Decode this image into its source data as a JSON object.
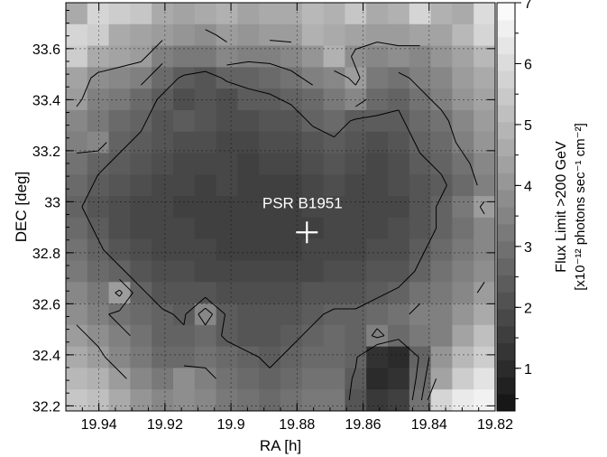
{
  "chart_data": {
    "type": "heatmap",
    "title": "",
    "xlabel": "RA [h]",
    "ylabel": "DEC [deg]",
    "colorbar_label": "Flux Limit >200 GeV",
    "colorbar_unit": "[x10⁻¹² photons sec⁻¹ cm⁻²]",
    "xlim": [
      19.95,
      19.82
    ],
    "ylim": [
      32.18,
      33.78
    ],
    "zlim": [
      0.3,
      7
    ],
    "x_ticks": [
      19.94,
      19.92,
      19.9,
      19.88,
      19.86,
      19.84,
      19.82
    ],
    "x_tick_labels": [
      "19.94",
      "19.92",
      "19.9",
      "19.88",
      "19.86",
      "19.84",
      "19.82"
    ],
    "y_ticks": [
      32.2,
      32.4,
      32.6,
      32.8,
      33.0,
      33.2,
      33.4,
      33.6
    ],
    "y_tick_labels": [
      "32.2",
      "32.4",
      "32.6",
      "32.8",
      "33",
      "33.2",
      "33.4",
      "33.6"
    ],
    "z_ticks": [
      1,
      2,
      3,
      4,
      5,
      6,
      7
    ],
    "z_tick_labels": [
      "1",
      "2",
      "3",
      "4",
      "5",
      "6",
      "7"
    ],
    "grid": true,
    "annotation": {
      "label": "PSR B1951",
      "ra": 19.877,
      "dec": 32.88
    },
    "grid_note": "rows listed from top (DEC 33.78) to bottom (DEC 32.18); columns from RA 19.95 to 19.82",
    "cell_values": [
      [
        4.6,
        5.8,
        5.6,
        5.4,
        4.6,
        4.4,
        4.6,
        4.8,
        4.4,
        4.6,
        4.6,
        5.0,
        4.8,
        5.4,
        4.6,
        4.8,
        5.8,
        4.8,
        4.6,
        6.0
      ],
      [
        5.8,
        5.6,
        4.6,
        4.4,
        4.2,
        4.0,
        3.8,
        4.2,
        4.0,
        4.2,
        4.2,
        4.8,
        4.6,
        4.4,
        4.2,
        4.2,
        4.4,
        4.4,
        5.0,
        5.8
      ],
      [
        5.6,
        4.6,
        4.4,
        4.2,
        3.4,
        3.2,
        3.2,
        3.6,
        3.4,
        3.4,
        3.6,
        4.0,
        4.8,
        3.8,
        3.6,
        3.8,
        3.6,
        4.0,
        4.4,
        5.0
      ],
      [
        4.4,
        3.8,
        3.6,
        3.4,
        2.8,
        2.4,
        2.2,
        2.6,
        2.6,
        2.8,
        3.0,
        3.4,
        3.6,
        4.2,
        3.2,
        3.0,
        3.4,
        3.6,
        4.2,
        4.6
      ],
      [
        4.2,
        3.4,
        3.2,
        2.8,
        2.4,
        2.0,
        2.2,
        2.0,
        2.4,
        2.4,
        2.6,
        2.8,
        3.2,
        3.6,
        2.8,
        2.6,
        3.0,
        3.4,
        4.0,
        4.4
      ],
      [
        3.6,
        3.2,
        2.8,
        2.6,
        2.2,
        2.4,
        2.2,
        2.0,
        2.0,
        2.2,
        2.2,
        2.6,
        2.8,
        2.4,
        2.4,
        2.4,
        2.8,
        3.0,
        3.6,
        4.2
      ],
      [
        3.4,
        3.6,
        2.6,
        2.4,
        2.2,
        2.0,
        2.0,
        1.8,
        1.8,
        2.0,
        2.0,
        2.2,
        2.4,
        2.2,
        2.0,
        2.2,
        2.6,
        2.8,
        3.4,
        4.0
      ],
      [
        3.0,
        2.6,
        2.4,
        2.2,
        2.0,
        1.8,
        1.8,
        1.8,
        1.6,
        1.8,
        1.8,
        2.0,
        2.2,
        2.0,
        1.8,
        2.0,
        2.4,
        2.6,
        3.0,
        3.6
      ],
      [
        2.8,
        2.4,
        2.2,
        2.0,
        1.8,
        1.8,
        1.6,
        1.8,
        1.6,
        1.6,
        1.6,
        1.8,
        2.0,
        1.8,
        1.8,
        2.0,
        2.2,
        2.4,
        2.8,
        3.4
      ],
      [
        2.6,
        2.2,
        2.0,
        1.8,
        1.8,
        1.6,
        1.6,
        1.6,
        1.6,
        1.6,
        1.6,
        1.8,
        1.8,
        1.8,
        1.8,
        1.8,
        2.2,
        2.6,
        3.2,
        4.2
      ],
      [
        2.8,
        2.4,
        2.0,
        1.8,
        1.8,
        1.8,
        1.6,
        1.6,
        1.6,
        1.6,
        1.6,
        1.6,
        1.8,
        1.8,
        1.8,
        2.0,
        2.2,
        2.6,
        3.0,
        3.6
      ],
      [
        3.0,
        2.6,
        2.2,
        2.0,
        1.8,
        1.8,
        1.8,
        1.6,
        1.6,
        1.6,
        1.6,
        1.8,
        1.8,
        1.8,
        2.0,
        2.0,
        2.4,
        2.8,
        3.2,
        3.6
      ],
      [
        3.2,
        2.8,
        2.6,
        2.2,
        2.0,
        2.0,
        1.8,
        1.8,
        1.8,
        1.8,
        1.8,
        1.8,
        2.0,
        2.0,
        2.2,
        2.2,
        2.6,
        3.0,
        3.4,
        3.8
      ],
      [
        3.6,
        3.2,
        4.2,
        2.6,
        2.2,
        2.2,
        2.2,
        2.0,
        2.0,
        2.0,
        2.0,
        2.2,
        2.2,
        2.2,
        2.4,
        2.6,
        3.0,
        3.2,
        3.6,
        4.2
      ],
      [
        3.8,
        3.4,
        3.0,
        2.8,
        2.6,
        2.4,
        3.6,
        2.4,
        2.2,
        2.2,
        2.2,
        2.4,
        2.6,
        2.6,
        2.8,
        3.0,
        3.4,
        3.4,
        4.0,
        4.6
      ],
      [
        4.2,
        3.8,
        3.4,
        3.0,
        2.6,
        2.6,
        2.8,
        2.4,
        2.2,
        2.2,
        2.4,
        2.6,
        2.8,
        2.6,
        3.4,
        2.8,
        3.2,
        3.4,
        4.4,
        5.2
      ],
      [
        4.6,
        4.2,
        3.6,
        3.2,
        2.8,
        2.8,
        3.0,
        2.8,
        2.6,
        2.4,
        2.6,
        2.8,
        2.8,
        2.6,
        1.2,
        1.0,
        2.6,
        4.0,
        5.0,
        5.6
      ],
      [
        5.0,
        4.8,
        4.2,
        3.6,
        3.2,
        3.8,
        3.4,
        3.0,
        2.8,
        2.6,
        2.8,
        3.0,
        3.0,
        2.4,
        1.0,
        1.2,
        2.8,
        4.4,
        5.6,
        6.2
      ],
      [
        5.4,
        5.2,
        4.6,
        4.0,
        3.6,
        3.8,
        3.6,
        3.2,
        3.0,
        2.8,
        3.0,
        3.2,
        3.2,
        2.2,
        1.4,
        1.6,
        3.0,
        5.8,
        6.4,
        6.6
      ]
    ],
    "contour_levels": [
      2.5,
      3.2,
      4.0
    ]
  }
}
